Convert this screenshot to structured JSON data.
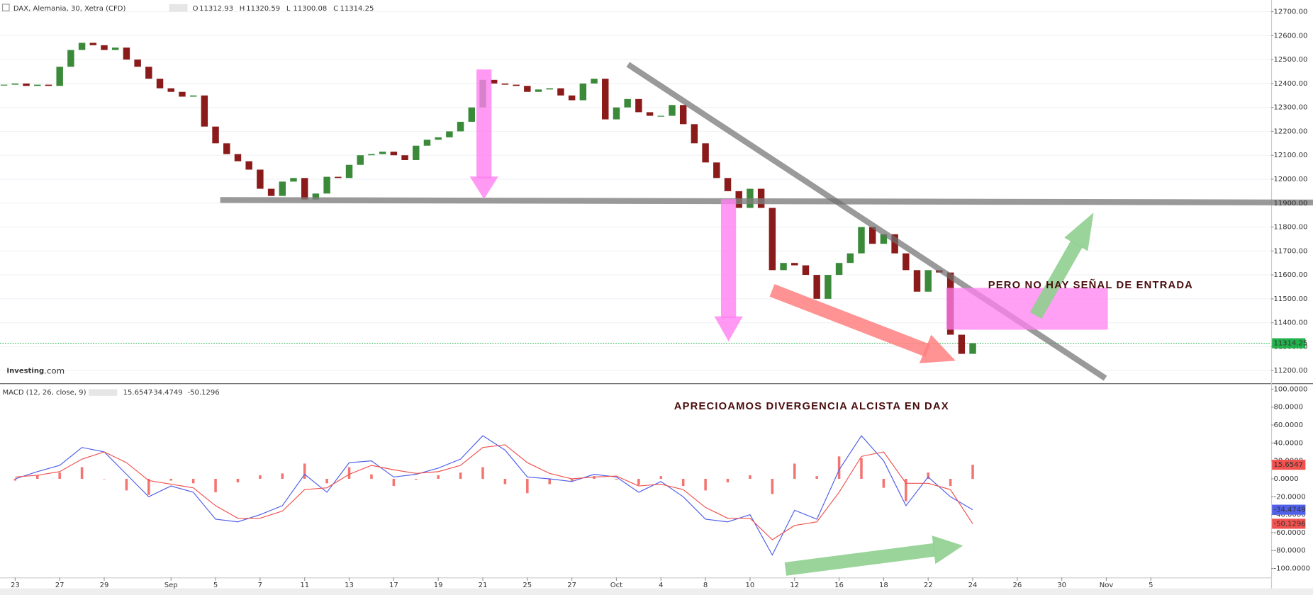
{
  "header": {
    "symbol": "DAX, Alemania, 30, Xetra (CFD)",
    "ohlc": [
      {
        "label": "O",
        "value": 11312.93
      },
      {
        "label": "H",
        "value": 11320.59
      },
      {
        "label": "L",
        "value": 11300.08
      },
      {
        "label": "C",
        "value": 11314.25
      }
    ],
    "logo": [
      "Investing",
      ".com"
    ]
  },
  "annotations": [
    "PERO NO HAY SEÑAL DE ENTRADA",
    "APRECIOAMOS DIVERGENCIA ALCISTA EN DAX"
  ],
  "chart_data": [
    {
      "type": "candlestick",
      "up_color": "#3a8a3a",
      "down_color": "#8b1a1a",
      "last_color": "#22b14c",
      "x": [
        -0.5,
        0,
        0.5,
        1,
        1.5,
        2,
        2.5,
        3,
        3.5,
        4,
        4.5,
        5,
        5.5,
        6,
        6.5,
        7,
        7.5,
        8,
        8.5,
        9,
        9.5,
        10,
        10.5,
        11,
        11.5,
        12,
        12.5,
        13,
        13.5,
        14,
        14.5,
        15,
        15.5,
        16,
        16.5,
        17,
        17.5,
        18,
        18.5,
        19,
        19.5,
        20,
        20.5,
        21,
        21.5,
        22,
        22.5,
        23,
        23.5,
        24,
        24.5,
        25,
        25.5,
        26,
        26.5,
        27,
        27.5,
        28,
        28.5,
        29,
        29.5,
        30,
        30.5,
        31,
        31.5,
        32,
        32.5,
        33,
        33.5,
        34,
        34.5,
        35,
        35.5,
        36,
        36.5,
        37,
        37.5,
        38,
        38.5,
        39,
        39.5,
        40,
        40.5,
        41,
        41.5,
        42,
        42.5,
        43
      ],
      "close": [
        12395,
        12400,
        12390,
        12395,
        12390,
        12470,
        12540,
        12570,
        12560,
        12540,
        12550,
        12500,
        12470,
        12420,
        12380,
        12365,
        12345,
        12350,
        12220,
        12150,
        12105,
        12075,
        12040,
        11960,
        11930,
        11990,
        12005,
        11915,
        11940,
        12010,
        12005,
        12060,
        12100,
        12105,
        12115,
        12100,
        12080,
        12140,
        12165,
        12175,
        12200,
        12240,
        12300,
        12415,
        12400,
        12395,
        12390,
        12365,
        12375,
        12380,
        12350,
        12330,
        12400,
        12420,
        12250,
        12300,
        12335,
        12280,
        12265,
        12265,
        12310,
        12230,
        12150,
        12070,
        12005,
        11950,
        11880,
        11960,
        11880,
        11620,
        11650,
        11640,
        11600,
        11500,
        11600,
        11650,
        11690,
        11800,
        11730,
        11770,
        11690,
        11620,
        11530,
        11620,
        11610,
        11350,
        11270,
        11314.25
      ],
      "xlim": [
        -0.68,
        56.4
      ],
      "ylim": [
        11147,
        12749
      ],
      "yticks": [
        {
          "value": 11200,
          "label": "11200.00"
        },
        {
          "value": 11300,
          "label": "11300.00"
        },
        {
          "value": 11400,
          "label": "11400.00"
        },
        {
          "value": 11500,
          "label": "11500.00"
        },
        {
          "value": 11600,
          "label": "11600.00"
        },
        {
          "value": 11700,
          "label": "11700.00"
        },
        {
          "value": 11800,
          "label": "11800.00"
        },
        {
          "value": 11900,
          "label": "11900.00"
        },
        {
          "value": 12000,
          "label": "12000.00"
        },
        {
          "value": 12100,
          "label": "12100.00"
        },
        {
          "value": 12200,
          "label": "12200.00"
        },
        {
          "value": 12300,
          "label": "12300.00"
        },
        {
          "value": 12400,
          "label": "12400.00"
        },
        {
          "value": 12500,
          "label": "12500.00"
        },
        {
          "value": 12600,
          "label": "12600.00"
        },
        {
          "value": 12700,
          "label": "12700.00"
        }
      ],
      "grid": true
    },
    {
      "type": "macd",
      "title": "MACD (12, 26, close, 9)",
      "x": [
        0,
        1,
        2,
        3,
        4,
        5,
        6,
        7,
        8,
        9,
        10,
        11,
        12,
        13,
        14,
        15,
        16,
        17,
        18,
        19,
        20,
        21,
        22,
        23,
        24,
        25,
        26,
        27,
        28,
        29,
        30,
        31,
        32,
        33,
        34,
        35,
        36,
        37,
        38,
        39,
        40,
        41,
        42,
        43
      ],
      "series": [
        {
          "color": "#5060e8",
          "values": [
            0,
            8,
            15,
            35,
            30,
            5,
            -20,
            -8,
            -15,
            -45,
            -48,
            -40,
            -30,
            5,
            -15,
            18,
            20,
            2,
            5,
            12,
            22,
            48,
            32,
            2,
            0,
            -3,
            5,
            2,
            -15,
            -3,
            -20,
            -45,
            -48,
            -40,
            -85,
            -35,
            -45,
            10,
            48,
            20,
            -30,
            2,
            -20,
            -34.4749
          ]
        },
        {
          "color": "#f0524f",
          "values": [
            2,
            4,
            8,
            22,
            30,
            18,
            -2,
            -6,
            -10,
            -30,
            -44,
            -44,
            -36,
            -12,
            -10,
            5,
            15,
            10,
            6,
            8,
            15,
            35,
            38,
            18,
            6,
            0,
            2,
            3,
            -8,
            -6,
            -12,
            -32,
            -44,
            -44,
            -68,
            -52,
            -48,
            -15,
            25,
            30,
            -5,
            -5,
            -12,
            -50.1296
          ]
        }
      ],
      "histogram": {
        "color": "#f0524f",
        "values": [
          -2,
          4,
          7,
          13,
          0,
          -13,
          -18,
          -2,
          -5,
          -15,
          -4,
          4,
          6,
          17,
          -5,
          13,
          5,
          -8,
          -1,
          4,
          7,
          13,
          -6,
          -16,
          -6,
          -3,
          3,
          -1,
          -7,
          3,
          -8,
          -13,
          -4,
          4,
          -17,
          17,
          3,
          25,
          23,
          -10,
          -25,
          7,
          -8,
          15.6547
        ]
      },
      "xlim": [
        -0.68,
        56.4
      ],
      "ylim": [
        -110,
        104.7
      ],
      "yticks": [
        {
          "value": 100,
          "label": "100.0000"
        },
        {
          "value": 80,
          "label": "80.0000"
        },
        {
          "value": 60,
          "label": "60.0000"
        },
        {
          "value": 40,
          "label": "40.0000"
        },
        {
          "value": 20,
          "label": "20.0000"
        },
        {
          "value": 0,
          "label": "0.0000"
        },
        {
          "value": -20,
          "label": "-20.0000"
        },
        {
          "value": -40,
          "label": "-40.0000"
        },
        {
          "value": -60,
          "label": "-60.0000"
        },
        {
          "value": -80,
          "label": "-80.0000"
        },
        {
          "value": -100,
          "label": "-100.0000"
        }
      ],
      "xticks": [
        {
          "value": 0,
          "label": "23"
        },
        {
          "value": 2,
          "label": "27"
        },
        {
          "value": 4,
          "label": "29"
        },
        {
          "value": 7,
          "label": "Sep"
        },
        {
          "value": 9,
          "label": "5"
        },
        {
          "value": 11,
          "label": "7"
        },
        {
          "value": 13,
          "label": "11"
        },
        {
          "value": 15,
          "label": "13"
        },
        {
          "value": 17,
          "label": "17"
        },
        {
          "value": 19,
          "label": "19"
        },
        {
          "value": 21,
          "label": "21"
        },
        {
          "value": 23,
          "label": "25"
        },
        {
          "value": 25,
          "label": "27"
        },
        {
          "value": 27,
          "label": "Oct"
        },
        {
          "value": 29,
          "label": "4"
        },
        {
          "value": 31,
          "label": "8"
        },
        {
          "value": 33,
          "label": "10"
        },
        {
          "value": 35,
          "label": "12"
        },
        {
          "value": 37,
          "label": "16"
        },
        {
          "value": 39,
          "label": "18"
        },
        {
          "value": 41,
          "label": "22"
        },
        {
          "value": 43,
          "label": "24"
        },
        {
          "value": 45,
          "label": "26"
        },
        {
          "value": 47,
          "label": "30"
        },
        {
          "value": 49,
          "label": "Nov"
        },
        {
          "value": 51,
          "label": "5"
        }
      ]
    }
  ]
}
